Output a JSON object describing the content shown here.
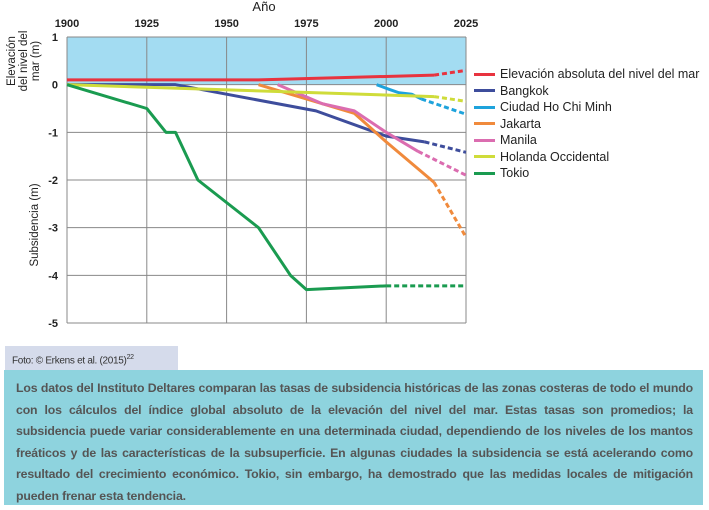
{
  "chart_data": {
    "type": "line",
    "xlabel": "Año",
    "ylabel_top": "Elevación del nivel del mar (m)",
    "ylabel_bottom": "Subsidencia (m)",
    "xlim": [
      1900,
      2025
    ],
    "ylim": [
      -5,
      1
    ],
    "xticks": [
      1900,
      1925,
      1950,
      1975,
      2000,
      2025
    ],
    "yticks": [
      1,
      0,
      -1,
      -2,
      -3,
      -4,
      -5
    ],
    "grid": true,
    "legend_position": "right",
    "sea_level_band_color": "#a3dcf2",
    "series": [
      {
        "name": "Elevación absoluta del nivel del mar",
        "color": "#e8333f",
        "solid": [
          [
            1900,
            0.1
          ],
          [
            1960,
            0.1
          ],
          [
            2015,
            0.2
          ]
        ],
        "projected": [
          [
            2015,
            0.2
          ],
          [
            2025,
            0.3
          ]
        ]
      },
      {
        "name": "Bangkok",
        "color": "#3e4d9c",
        "solid": [
          [
            1900,
            0
          ],
          [
            1934,
            0
          ],
          [
            1978,
            -0.55
          ],
          [
            2000,
            -1.08
          ],
          [
            2012,
            -1.2
          ]
        ],
        "projected": [
          [
            2012,
            -1.2
          ],
          [
            2025,
            -1.42
          ]
        ]
      },
      {
        "name": "Ciudad Ho Chi Minh",
        "color": "#1ea3dc",
        "solid": [
          [
            1997,
            0
          ],
          [
            2001,
            -0.1
          ],
          [
            2004,
            -0.17
          ],
          [
            2008,
            -0.2
          ],
          [
            2011,
            -0.3
          ]
        ],
        "projected": [
          [
            2011,
            -0.3
          ],
          [
            2025,
            -0.62
          ]
        ]
      },
      {
        "name": "Jakarta",
        "color": "#f08a3c",
        "solid": [
          [
            1960,
            0
          ],
          [
            1975,
            -0.3
          ],
          [
            1990,
            -0.6
          ],
          [
            2000,
            -1.2
          ],
          [
            2015,
            -2.05
          ]
        ],
        "projected": [
          [
            2015,
            -2.05
          ],
          [
            2025,
            -3.2
          ]
        ]
      },
      {
        "name": "Manila",
        "color": "#db6db0",
        "solid": [
          [
            1966,
            0
          ],
          [
            1980,
            -0.4
          ],
          [
            1990,
            -0.55
          ],
          [
            2000,
            -1.0
          ],
          [
            2010,
            -1.4
          ]
        ],
        "projected": [
          [
            2010,
            -1.4
          ],
          [
            2025,
            -1.9
          ]
        ]
      },
      {
        "name": "Holanda Occidental",
        "color": "#cfdc3a",
        "solid": [
          [
            1900,
            0
          ],
          [
            2015,
            -0.25
          ]
        ],
        "projected": [
          [
            2015,
            -0.25
          ],
          [
            2025,
            -0.35
          ]
        ]
      },
      {
        "name": "Tokio",
        "color": "#1a9b50",
        "solid": [
          [
            1900,
            0
          ],
          [
            1925,
            -0.5
          ],
          [
            1931,
            -1
          ],
          [
            1934,
            -1
          ],
          [
            1941,
            -2
          ],
          [
            1960,
            -3
          ],
          [
            1970,
            -4
          ],
          [
            1975,
            -4.3
          ],
          [
            2000,
            -4.22
          ]
        ],
        "projected": [
          [
            2000,
            -4.22
          ],
          [
            2025,
            -4.22
          ]
        ]
      }
    ]
  },
  "credit": {
    "text": "Foto: © Erkens et al. (2015)",
    "superscript": "22"
  },
  "caption": "Los datos del Instituto Deltares comparan las tasas de subsidencia históricas de las zonas costeras de todo el mundo con los cálculos del índice global absoluto de la elevación del nivel del mar. Estas tasas son promedios; la subsidencia puede variar considerablemente en una determinada ciudad, dependiendo de los niveles de los mantos freáticos y de las características de la subsuperficie. En algunas ciudades la subsidencia se está acelerando como resultado del crecimiento económico. Tokio, sin embargo, ha demostrado que las medidas locales de mitigación pueden frenar esta tendencia."
}
